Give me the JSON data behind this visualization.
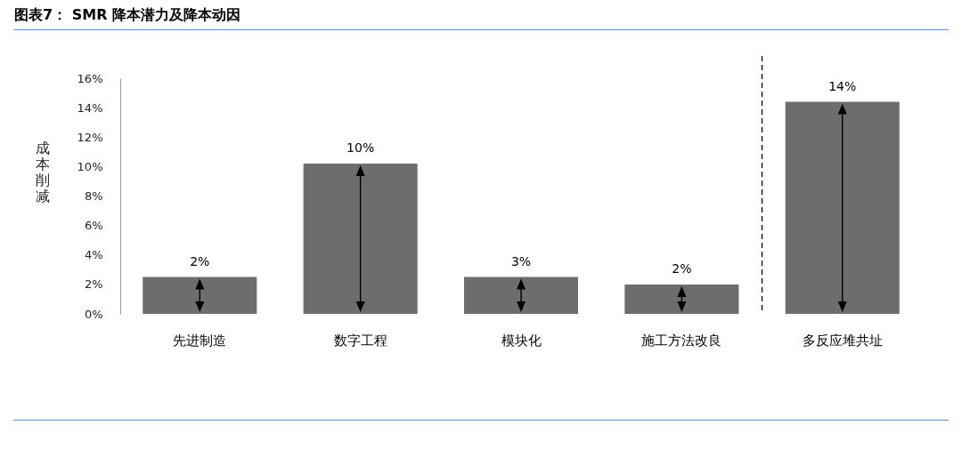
{
  "chart_data": {
    "type": "bar",
    "title": "图表7： SMR 降本潜力及降本动因",
    "ylabel": "成本削减",
    "categories": [
      "先进制造",
      "数字工程",
      "模块化",
      "施工方法改良",
      "多反应堆共址"
    ],
    "values": [
      2.5,
      10.2,
      2.5,
      2.0,
      14.4
    ],
    "value_labels": [
      "2%",
      "10%",
      "3%",
      "2%",
      "14%"
    ],
    "color": "#6d6d6d",
    "ylim": [
      0,
      16
    ],
    "yticks": [
      {
        "value": 0,
        "label": "0%"
      },
      {
        "value": 2,
        "label": "2%"
      },
      {
        "value": 4,
        "label": "4%"
      },
      {
        "value": 6,
        "label": "6%"
      },
      {
        "value": 8,
        "label": "8%"
      },
      {
        "value": 10,
        "label": "10%"
      },
      {
        "value": 12,
        "label": "12%"
      },
      {
        "value": 14,
        "label": "14%"
      },
      {
        "value": 16,
        "label": "16%"
      }
    ],
    "grid": false
  }
}
